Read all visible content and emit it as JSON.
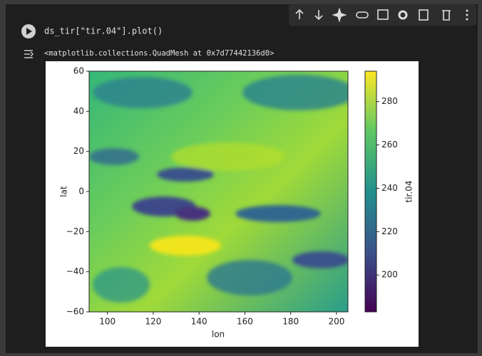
{
  "cell": {
    "code": "ds_tir[\"tir.04\"].plot()",
    "output": "<matplotlib.collections.QuadMesh at 0x7d77442136d0>"
  },
  "chart_data": {
    "type": "heatmap",
    "x_label": "lon",
    "y_label": "lat",
    "colorbar_label": "tir.04",
    "xlim": [
      92,
      205
    ],
    "xticks": [
      100,
      120,
      140,
      160,
      180,
      200
    ],
    "ylim": [
      -60,
      60
    ],
    "yticks": [
      {
        "value": -60,
        "label": "−60"
      },
      {
        "value": -40,
        "label": "−40"
      },
      {
        "value": -20,
        "label": "−20"
      },
      0,
      20,
      40,
      60
    ],
    "clim": [
      183,
      294
    ],
    "cticks": [
      200,
      220,
      240,
      260,
      280
    ],
    "colormap": "viridis"
  }
}
